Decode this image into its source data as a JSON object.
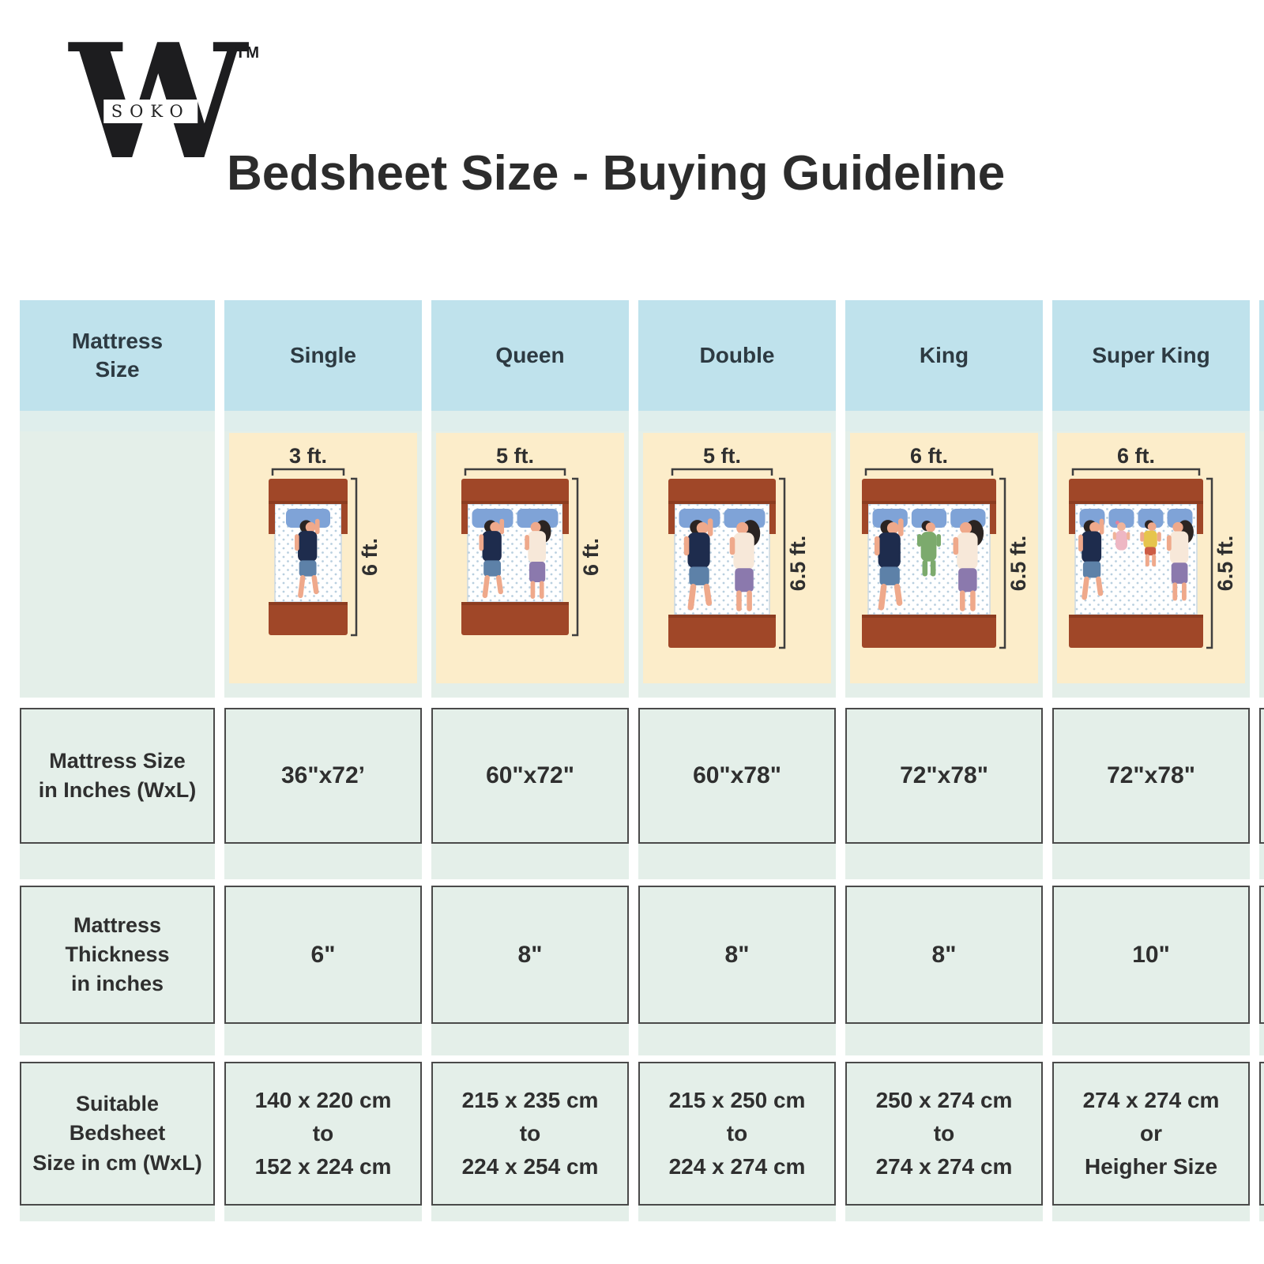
{
  "brand": {
    "letter": "W",
    "subtext": "SOKO",
    "trademark": "TM"
  },
  "title": "Bedsheet Size - Buying Guideline",
  "colors": {
    "header_blue": "#bfe2ec",
    "mint": "#e4efe9",
    "pale_strip": "#dfeeec",
    "peach": "#fcedca",
    "cell_border": "#4a4a4a",
    "text": "#2f2f2f",
    "bed_wood": "#a04728",
    "bed_wood_dark": "#8c3c20",
    "pillow": "#7fa3d7",
    "mattress_dot": "#b9cfdf",
    "skin": "#efa98b",
    "hair": "#2b2422",
    "man_shirt": "#1e2c4d",
    "man_shorts": "#5d81a8",
    "woman_top": "#f7e8d9",
    "woman_pants": "#8b79ad",
    "child_green": "#7caa6d",
    "child_yellow": "#e6c54d",
    "child_shorts_red": "#cc5b44",
    "baby_pink": "#eeb7c4"
  },
  "table": {
    "corner_label": "Mattress Size",
    "row_labels": [
      {
        "lines": [
          "Mattress Size",
          "in Inches (WxL)"
        ]
      },
      {
        "lines": [
          "Mattress",
          "Thickness",
          "in inches"
        ]
      },
      {
        "lines": [
          "Suitable",
          "Bedsheet",
          "Size in cm (WxL)"
        ]
      }
    ],
    "columns": [
      {
        "name": "Single",
        "bed": {
          "width_label": "3 ft.",
          "length_label": "6 ft.",
          "width_ft": 3,
          "length_ft": 6,
          "occupants": [
            "man"
          ]
        },
        "inches": "36\"x72’",
        "thickness": "6\"",
        "bedsheet_lines": [
          "140 x 220 cm",
          "to",
          "152 x 224 cm"
        ]
      },
      {
        "name": "Queen",
        "bed": {
          "width_label": "5 ft.",
          "length_label": "6 ft.",
          "width_ft": 5,
          "length_ft": 6,
          "occupants": [
            "man",
            "woman"
          ]
        },
        "inches": "60\"x72\"",
        "thickness": "8\"",
        "bedsheet_lines": [
          "215 x 235 cm",
          "to",
          "224 x 254 cm"
        ]
      },
      {
        "name": "Double",
        "bed": {
          "width_label": "5 ft.",
          "length_label": "6.5 ft.",
          "width_ft": 5,
          "length_ft": 6.5,
          "occupants": [
            "man",
            "woman"
          ]
        },
        "inches": "60\"x78\"",
        "thickness": "8\"",
        "bedsheet_lines": [
          "215 x 250 cm",
          "to",
          "224 x 274 cm"
        ]
      },
      {
        "name": "King",
        "bed": {
          "width_label": "6 ft.",
          "length_label": "6.5 ft.",
          "width_ft": 6,
          "length_ft": 6.5,
          "occupants": [
            "man",
            "child_green",
            "woman"
          ]
        },
        "inches": "72\"x78\"",
        "thickness": "8\"",
        "bedsheet_lines": [
          "250 x 274 cm",
          "to",
          "274 x 274 cm"
        ]
      },
      {
        "name": "Super King",
        "bed": {
          "width_label": "6 ft.",
          "length_label": "6.5 ft.",
          "width_ft": 6,
          "length_ft": 6.5,
          "occupants": [
            "man",
            "baby",
            "child_yellow",
            "woman"
          ]
        },
        "inches": "72\"x78\"",
        "thickness": "10\"",
        "bedsheet_lines": [
          "274 x 274 cm",
          "or",
          "Heigher Size"
        ]
      }
    ]
  }
}
